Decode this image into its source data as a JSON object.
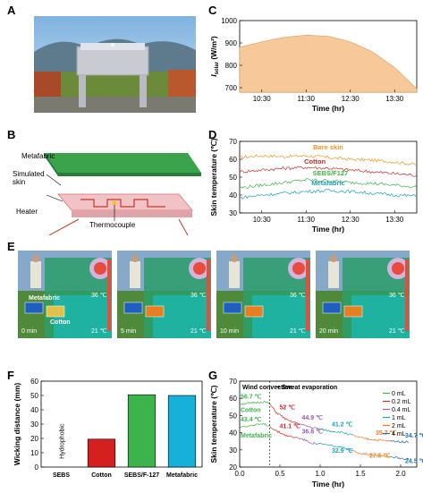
{
  "panels": {
    "A": "A",
    "B": "B",
    "C": "C",
    "D": "D",
    "E": "E",
    "F": "F",
    "G": "G"
  },
  "panel_b": {
    "labels": [
      "Metafabric",
      "Simulated\nskin",
      "Heater",
      "Thermocouple"
    ]
  },
  "panel_e": {
    "frames": [
      {
        "time": "0 min",
        "tmax": "36 ℃",
        "tmin": "21 ℃"
      },
      {
        "time": "5 min",
        "tmax": "36 ℃",
        "tmin": "21 ℃"
      },
      {
        "time": "10 min",
        "tmax": "36 ℃",
        "tmin": "21 ℃"
      },
      {
        "time": "20 min",
        "tmax": "36 ℃",
        "tmin": "21 ℃"
      }
    ],
    "sample_labels": [
      "Metafabric",
      "Cotton"
    ]
  },
  "chart_data": [
    {
      "id": "C",
      "type": "area",
      "xlabel": "Time (hr)",
      "ylabel": "I_solar (W/m²)",
      "ylabel_main": "I",
      "ylabel_sub": "solar",
      "ylabel_unit": " (W/m²)",
      "x_ticks": [
        "10:30",
        "11:30",
        "12:30",
        "13:30"
      ],
      "x_tick_values": [
        10.5,
        11.5,
        12.5,
        13.5
      ],
      "xlim": [
        10.0,
        14.0
      ],
      "y_ticks": [
        700,
        800,
        900,
        1000
      ],
      "ylim": [
        680,
        1000
      ],
      "x": [
        10.0,
        10.5,
        11.0,
        11.5,
        12.0,
        12.5,
        13.0,
        13.5,
        14.0
      ],
      "y": [
        880,
        905,
        925,
        935,
        930,
        905,
        860,
        790,
        695
      ],
      "color": "#f7c99a"
    },
    {
      "id": "D",
      "type": "line",
      "xlabel": "Time (hr)",
      "ylabel": "Skin temperature (℃)",
      "x_ticks": [
        "10:30",
        "11:30",
        "12:30",
        "13:30"
      ],
      "x_tick_values": [
        10.5,
        11.5,
        12.5,
        13.5
      ],
      "xlim": [
        10.0,
        14.0
      ],
      "y_ticks": [
        30,
        40,
        50,
        60,
        70
      ],
      "ylim": [
        30,
        70
      ],
      "series": [
        {
          "name": "Bare skin",
          "color": "#f0961e",
          "x": [
            10.0,
            10.5,
            11.0,
            11.5,
            12.0,
            12.5,
            13.0,
            13.5,
            14.0
          ],
          "y": [
            61,
            62,
            61.5,
            62,
            61,
            60,
            59.5,
            58.5,
            57
          ]
        },
        {
          "name": "Cotton",
          "color": "#d62728",
          "x": [
            10.0,
            10.5,
            11.0,
            11.5,
            12.0,
            12.5,
            13.0,
            13.5,
            14.0
          ],
          "y": [
            53,
            54,
            55,
            55.5,
            55,
            54,
            53,
            52,
            51
          ]
        },
        {
          "name": "SEBS/F127",
          "color": "#3cb44b",
          "x": [
            10.0,
            10.5,
            11.0,
            11.5,
            12.0,
            12.5,
            13.0,
            13.5,
            14.0
          ],
          "y": [
            44,
            45.5,
            47,
            48.5,
            48,
            47,
            46.5,
            45.5,
            44.5
          ]
        },
        {
          "name": "Metafabric",
          "color": "#17a2b8",
          "x": [
            10.0,
            10.5,
            11.0,
            11.5,
            12.0,
            12.5,
            13.0,
            13.5,
            14.0
          ],
          "y": [
            38.5,
            40,
            41,
            42,
            42.5,
            42,
            41,
            40,
            39.5
          ]
        }
      ]
    },
    {
      "id": "F",
      "type": "bar",
      "xlabel": "",
      "ylabel": "Wicking distance (mm)",
      "categories": [
        "SEBS",
        "Cotton",
        "SEBS/F-127",
        "Metafabric"
      ],
      "values": [
        0,
        19.5,
        50.5,
        50
      ],
      "colors": [
        "#ffffff",
        "#d62020",
        "#3cb44b",
        "#17b0d8"
      ],
      "y_ticks": [
        0,
        10,
        20,
        30,
        40,
        50,
        60
      ],
      "ylim": [
        0,
        60
      ],
      "annotation": "Hydrophobic"
    },
    {
      "id": "G",
      "type": "line",
      "xlabel": "Time (hr)",
      "ylabel": "Skin temperature (℃)",
      "x_ticks": [
        "0.0",
        "0.5",
        "1.0",
        "1.5",
        "2.0"
      ],
      "x_tick_values": [
        0.0,
        0.5,
        1.0,
        1.5,
        2.0
      ],
      "xlim": [
        0.0,
        2.2
      ],
      "y_ticks": [
        20,
        30,
        40,
        50,
        60,
        70
      ],
      "ylim": [
        20,
        70
      ],
      "phase_labels": [
        "Wind convection",
        "+ Sweat evaporation"
      ],
      "divider_x": 0.37,
      "legend": [
        {
          "name": "0 mL",
          "color": "#3cb44b"
        },
        {
          "name": "0.2 mL",
          "color": "#d62728"
        },
        {
          "name": "0.4 mL",
          "color": "#9b59b6"
        },
        {
          "name": "1 mL",
          "color": "#17a2b8"
        },
        {
          "name": "2 mL",
          "color": "#e67e22"
        },
        {
          "name": "4 mL",
          "color": "#1f6fb4"
        }
      ],
      "series": [
        {
          "name": "Cotton",
          "color": "#888888",
          "x": [
            0.0,
            0.1,
            0.2,
            0.3,
            0.37,
            0.45,
            0.6,
            0.75,
            0.9,
            1.1,
            1.3,
            1.5,
            1.7,
            1.9,
            2.1
          ],
          "y": [
            56.7,
            57,
            57.5,
            58,
            57,
            52,
            47,
            44.9,
            43,
            41.2,
            40,
            37,
            35.7,
            35,
            34.7
          ]
        },
        {
          "name": "Metafabric",
          "color": "#888888",
          "x": [
            0.0,
            0.1,
            0.2,
            0.3,
            0.37,
            0.45,
            0.6,
            0.75,
            0.9,
            1.1,
            1.3,
            1.5,
            1.6,
            1.7,
            1.9,
            2.1
          ],
          "y": [
            43.4,
            44,
            44.5,
            45,
            44,
            41.1,
            38,
            36.8,
            34,
            32.9,
            31,
            28,
            27.5,
            27,
            26,
            24.5
          ]
        }
      ],
      "annotations": [
        {
          "text": "56.7 ℃",
          "x": 0.0,
          "y": 56.7,
          "color": "#3cb44b"
        },
        {
          "text": "Cotton",
          "x": 0.0,
          "y": 56.7,
          "color": "#3cb44b"
        },
        {
          "text": "43.4 ℃",
          "x": 0.0,
          "y": 43.4,
          "color": "#3cb44b"
        },
        {
          "text": "Metafabric",
          "x": 0.0,
          "y": 43.4,
          "color": "#3cb44b"
        },
        {
          "text": "52 ℃",
          "x": 0.45,
          "y": 52,
          "color": "#d62728"
        },
        {
          "text": "41.1 ℃",
          "x": 0.45,
          "y": 41.1,
          "color": "#d62728"
        },
        {
          "text": "44.9 ℃",
          "x": 0.75,
          "y": 44.9,
          "color": "#9b59b6"
        },
        {
          "text": "36.8 ℃",
          "x": 0.75,
          "y": 36.8,
          "color": "#9b59b6"
        },
        {
          "text": "41.2 ℃",
          "x": 1.1,
          "y": 41.2,
          "color": "#17a2b8"
        },
        {
          "text": "32.9 ℃",
          "x": 1.1,
          "y": 32.9,
          "color": "#17a2b8"
        },
        {
          "text": "35.7 ℃",
          "x": 1.7,
          "y": 35.7,
          "color": "#e67e22"
        },
        {
          "text": "27.5 ℃",
          "x": 1.6,
          "y": 27.5,
          "color": "#e67e22"
        },
        {
          "text": "34.7 ℃",
          "x": 2.1,
          "y": 34.7,
          "color": "#1f6fb4"
        },
        {
          "text": "24.5 ℃",
          "x": 2.1,
          "y": 24.5,
          "color": "#1f6fb4"
        }
      ]
    }
  ]
}
